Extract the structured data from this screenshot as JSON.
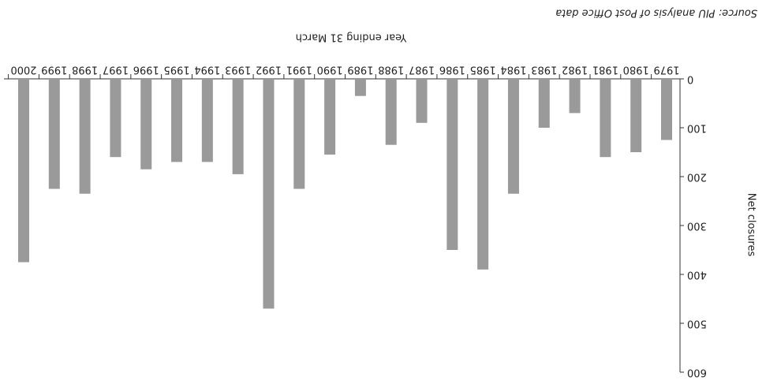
{
  "chart_data": {
    "type": "bar",
    "source": "Source: PIU analysis of Post Office data",
    "x_label": "Year ending 31 March",
    "y_label": "Net closures",
    "categories": [
      "1979",
      "1980",
      "1981",
      "1982",
      "1983",
      "1984",
      "1985",
      "1986",
      "1987",
      "1988",
      "1989",
      "1990",
      "1991",
      "1992",
      "1993",
      "1994",
      "1995",
      "1996",
      "1997",
      "1998",
      "1999",
      "2000"
    ],
    "values": [
      125,
      150,
      160,
      70,
      100,
      235,
      390,
      350,
      90,
      135,
      35,
      155,
      225,
      470,
      195,
      170,
      170,
      185,
      160,
      235,
      225,
      375
    ],
    "color": "#9a9a9a",
    "ylim": [
      0,
      600
    ],
    "yticks": [
      0,
      100,
      200,
      300,
      400,
      500,
      600
    ],
    "rotated_180": true
  }
}
